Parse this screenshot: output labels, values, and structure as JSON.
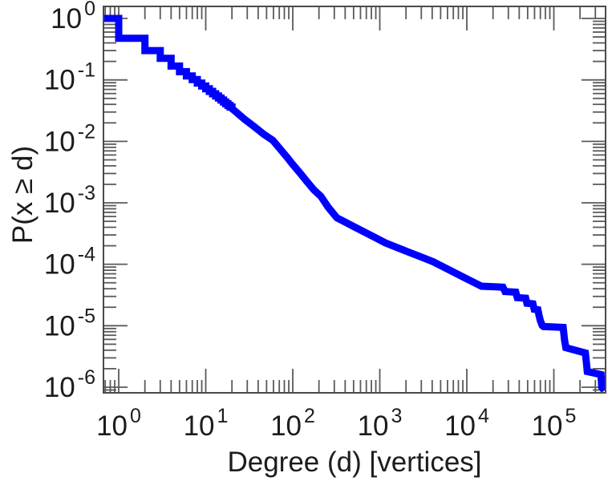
{
  "page": {
    "background": "#ffffff"
  },
  "colors": {
    "series": "#0000ff",
    "frame": "#4a4a4a",
    "ticks": "#5a5a5a",
    "text": "#1c1c1c",
    "background": "#ffffff"
  },
  "chart_data": {
    "type": "line",
    "title": "",
    "xlabel": "Degree (d) [vertices]",
    "ylabel": "P(x ≥ d)",
    "x_scale": "log",
    "y_scale": "log",
    "xlim": [
      0.668,
      393000
    ],
    "ylim": [
      8.1e-07,
      1.57
    ],
    "x_tick_exponents": [
      0,
      1,
      2,
      3,
      4,
      5
    ],
    "y_tick_exponents": [
      0,
      -1,
      -2,
      -3,
      -4,
      -5,
      -6
    ],
    "tick_label_base": "10",
    "minor_ticks": "log-2-to-9-all-sides",
    "grid": false,
    "legend": "none",
    "series": [
      {
        "name": "degree-ccdf",
        "color": "#0000ff",
        "line_width": 9,
        "points": [
          [
            0.668,
            1
          ],
          [
            1,
            1
          ],
          [
            1,
            0.476
          ],
          [
            2,
            0.476
          ],
          [
            2,
            0.3
          ],
          [
            3,
            0.3
          ],
          [
            3,
            0.225
          ],
          [
            4,
            0.225
          ],
          [
            4,
            0.168
          ],
          [
            5,
            0.168
          ],
          [
            5,
            0.136
          ],
          [
            6,
            0.136
          ],
          [
            6,
            0.116
          ],
          [
            7,
            0.116
          ],
          [
            7,
            0.101
          ],
          [
            8,
            0.101
          ],
          [
            8,
            0.089
          ],
          [
            9,
            0.089
          ],
          [
            9,
            0.0795
          ],
          [
            10,
            0.0795
          ],
          [
            10,
            0.0715
          ],
          [
            11,
            0.0715
          ],
          [
            11,
            0.065
          ],
          [
            12,
            0.065
          ],
          [
            12,
            0.0595
          ],
          [
            13,
            0.0595
          ],
          [
            13,
            0.0548
          ],
          [
            14,
            0.0548
          ],
          [
            14,
            0.0507
          ],
          [
            15,
            0.0507
          ],
          [
            15,
            0.047
          ],
          [
            16,
            0.047
          ],
          [
            16,
            0.0438
          ],
          [
            17,
            0.0438
          ],
          [
            17,
            0.041
          ],
          [
            18,
            0.041
          ],
          [
            18,
            0.0385
          ],
          [
            19,
            0.0385
          ],
          [
            19,
            0.0362
          ],
          [
            20,
            0.0362
          ],
          [
            20,
            0.0342
          ],
          [
            22,
            0.0305
          ],
          [
            25,
            0.0262
          ],
          [
            28,
            0.0228
          ],
          [
            32,
            0.0198
          ],
          [
            36,
            0.0174
          ],
          [
            41,
            0.015
          ],
          [
            46,
            0.0132
          ],
          [
            52,
            0.0117
          ],
          [
            59,
            0.0104
          ],
          [
            70,
            0.0078
          ],
          [
            85,
            0.0056
          ],
          [
            100,
            0.0042
          ],
          [
            120,
            0.0031
          ],
          [
            145,
            0.00223
          ],
          [
            175,
            0.00162
          ],
          [
            210,
            0.00128
          ],
          [
            255,
            0.00085
          ],
          [
            321,
            0.00057
          ],
          [
            400,
            0.000486
          ],
          [
            500,
            0.000412
          ],
          [
            650,
            0.00034
          ],
          [
            850,
            0.00028
          ],
          [
            1150,
            0.000224
          ],
          [
            1500,
            0.000193
          ],
          [
            2000,
            0.000164
          ],
          [
            2700,
            0.000139
          ],
          [
            4100,
            0.00011
          ],
          [
            5500,
            8.91e-05
          ],
          [
            7500,
            7.12e-05
          ],
          [
            10000,
            5.79e-05
          ],
          [
            12500,
            4.95e-05
          ],
          [
            14700,
            4.4e-05
          ],
          [
            20000,
            4.32e-05
          ],
          [
            26000,
            4.25e-05
          ],
          [
            27500,
            3.6e-05
          ],
          [
            36500,
            3.52e-05
          ],
          [
            38000,
            2.87e-05
          ],
          [
            47500,
            2.8e-05
          ],
          [
            49000,
            2.33e-05
          ],
          [
            57500,
            2.27e-05
          ],
          [
            59500,
            1.86e-05
          ],
          [
            65500,
            1.82e-05
          ],
          [
            67500,
            1.48e-05
          ],
          [
            70000,
            1.21e-05
          ],
          [
            73500,
            1.01e-05
          ],
          [
            76000,
            9.7e-06
          ],
          [
            128000,
            9.4e-06
          ],
          [
            133000,
            5.8e-06
          ],
          [
            137500,
            4.4e-06
          ],
          [
            230000,
            3.6e-06
          ],
          [
            238000,
            2.3e-06
          ],
          [
            242000,
            1.8e-06
          ],
          [
            348000,
            1.6e-06
          ],
          [
            355000,
            1e-06
          ],
          [
            380000,
            8.8e-07
          ]
        ]
      }
    ]
  }
}
